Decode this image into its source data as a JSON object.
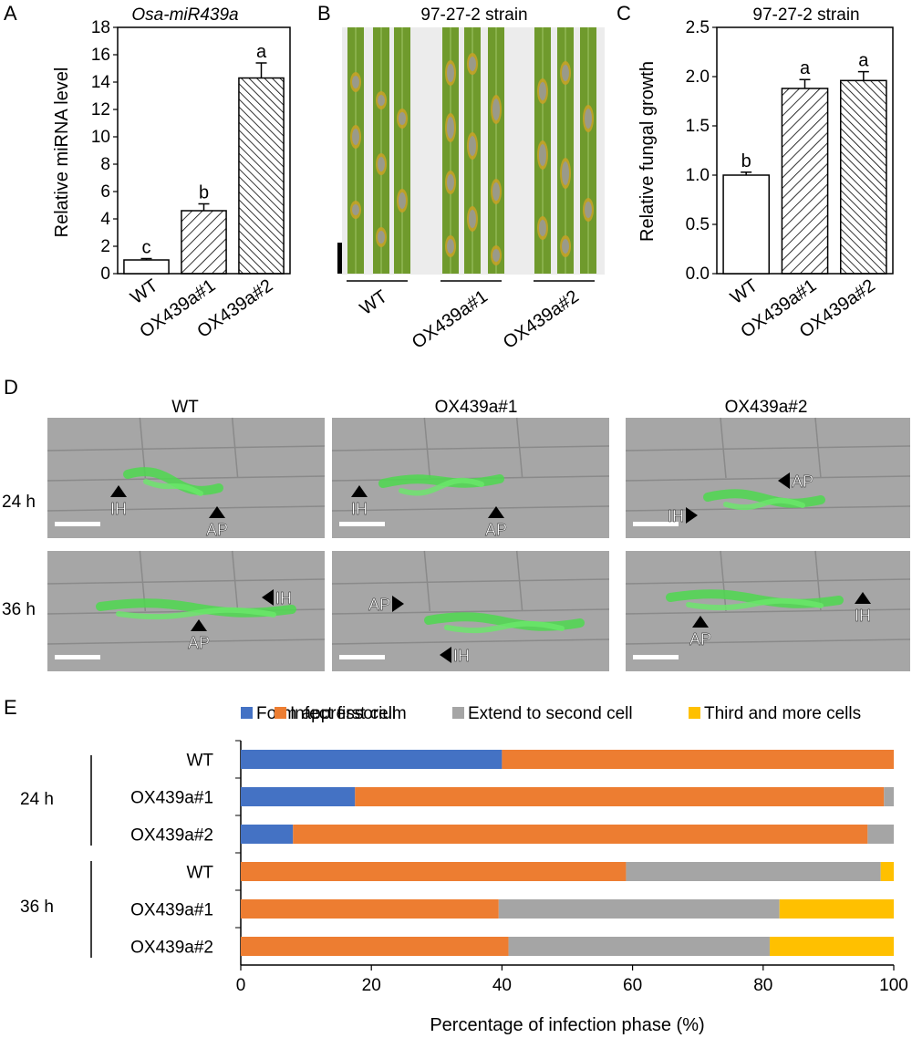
{
  "panels": {
    "A": {
      "label": "A",
      "chart_data": {
        "type": "bar",
        "title": "Osa-miR439a",
        "xlabel": "",
        "ylabel": "Relative miRNA level",
        "ylim": [
          0,
          18
        ],
        "yticks": [
          "0",
          "2",
          "4",
          "6",
          "8",
          "10",
          "12",
          "14",
          "16",
          "18"
        ],
        "categories": [
          "WT",
          "OX439a#1",
          "OX439a#2"
        ],
        "values": [
          1.0,
          4.6,
          14.3
        ],
        "errors": [
          0.1,
          0.5,
          1.1
        ],
        "letters": [
          "c",
          "b",
          "a"
        ],
        "fills": [
          "empty",
          "hatch",
          "crosshatch"
        ]
      }
    },
    "B": {
      "label": "B",
      "title": "97-27-2 strain",
      "groups": [
        "WT",
        "OX439a#1",
        "OX439a#2"
      ]
    },
    "C": {
      "label": "C",
      "chart_data": {
        "type": "bar",
        "title": "97-27-2 strain",
        "xlabel": "",
        "ylabel": "Relative fungal growth",
        "ylim": [
          0,
          2.5
        ],
        "yticks": [
          "0.0",
          "0.5",
          "1.0",
          "1.5",
          "2.0",
          "2.5"
        ],
        "categories": [
          "WT",
          "OX439a#1",
          "OX439a#2"
        ],
        "values": [
          1.0,
          1.88,
          1.96
        ],
        "errors": [
          0.03,
          0.09,
          0.09
        ],
        "letters": [
          "b",
          "a",
          "a"
        ],
        "fills": [
          "empty",
          "hatch",
          "crosshatch"
        ]
      }
    },
    "D": {
      "label": "D",
      "columns": [
        "WT",
        "OX439a#1",
        "OX439a#2"
      ],
      "rows": [
        "24 h",
        "36 h"
      ],
      "markers": {
        "ap": "AP",
        "ih": "IH"
      }
    },
    "E": {
      "label": "E",
      "chart_data": {
        "type": "bar",
        "orientation": "horizontal",
        "stacked": true,
        "xlabel": "Percentage of infection phase (%)",
        "xlim": [
          0,
          100
        ],
        "xticks": [
          "0",
          "20",
          "40",
          "60",
          "80",
          "100"
        ],
        "legend_position": "top",
        "groups": [
          "24 h",
          "36 h"
        ],
        "categories": [
          "WT",
          "OX439a#1",
          "OX439a#2",
          "WT",
          "OX439a#1",
          "OX439a#2"
        ],
        "series": [
          {
            "name": "Form appressorium",
            "color": "#4472C4",
            "values": [
              40,
              17.5,
              8,
              0,
              0,
              0
            ]
          },
          {
            "name": "Infect first cell",
            "color": "#ED7D31",
            "values": [
              60,
              81,
              88,
              59,
              39.5,
              41
            ]
          },
          {
            "name": "Extend to second cell",
            "color": "#A5A5A5",
            "values": [
              0,
              1.5,
              4,
              39,
              43,
              40
            ]
          },
          {
            "name": "Third and more cells",
            "color": "#FFC000",
            "values": [
              0,
              0,
              0,
              2,
              17.5,
              19
            ]
          }
        ]
      }
    }
  }
}
